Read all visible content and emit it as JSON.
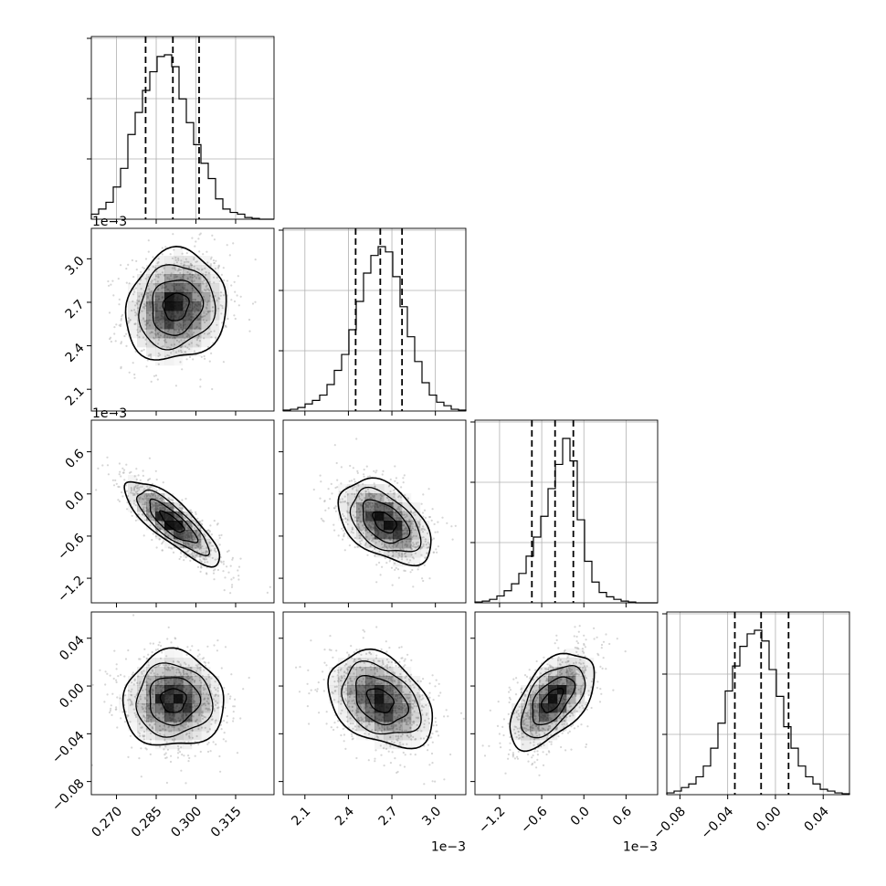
{
  "chart_data": {
    "type": "corner",
    "parameters": [
      {
        "ticks": [
          0.27,
          0.285,
          0.3,
          0.315
        ],
        "tick_labels": [
          "0.270",
          "0.285",
          "0.300",
          "0.315"
        ],
        "range": [
          0.2605,
          0.3295
        ],
        "quantiles": [
          0.281,
          0.2913,
          0.3012
        ],
        "offset_label": "",
        "hist": [
          0.03,
          0.06,
          0.1,
          0.19,
          0.3,
          0.5,
          0.63,
          0.76,
          0.87,
          0.96,
          0.97,
          0.9,
          0.71,
          0.57,
          0.44,
          0.33,
          0.24,
          0.12,
          0.06,
          0.04,
          0.03,
          0.01,
          0.005,
          0,
          0
        ]
      },
      {
        "ticks": [
          0.0021,
          0.0024,
          0.0027,
          0.003
        ],
        "tick_labels": [
          "2.1",
          "2.4",
          "2.7",
          "3.0"
        ],
        "range": [
          0.00195,
          0.00321
        ],
        "quantiles": [
          0.00245,
          0.00262,
          0.00277
        ],
        "offset_label": "1e−3",
        "hist": [
          0.005,
          0.01,
          0.02,
          0.04,
          0.06,
          0.09,
          0.15,
          0.23,
          0.32,
          0.46,
          0.62,
          0.78,
          0.88,
          0.93,
          0.9,
          0.76,
          0.59,
          0.42,
          0.28,
          0.16,
          0.09,
          0.05,
          0.03,
          0.01,
          0.005
        ]
      },
      {
        "ticks": [
          -0.0012,
          -0.0006,
          0.0,
          0.0006
        ],
        "tick_labels": [
          "−1.2",
          "−0.6",
          "0.0",
          "0.6"
        ],
        "range": [
          -0.00155,
          0.00105
        ],
        "quantiles": [
          -0.00074,
          -0.00041,
          -0.00015
        ],
        "offset_label": "1e−3",
        "hist": [
          0.005,
          0.01,
          0.02,
          0.04,
          0.07,
          0.11,
          0.17,
          0.27,
          0.38,
          0.5,
          0.66,
          0.8,
          0.95,
          0.82,
          0.48,
          0.24,
          0.12,
          0.06,
          0.035,
          0.02,
          0.01,
          0.005,
          0,
          0,
          0
        ]
      },
      {
        "ticks": [
          -0.08,
          -0.04,
          0.0,
          0.04
        ],
        "tick_labels": [
          "−0.08",
          "−0.04",
          "0.00",
          "0.04"
        ],
        "range": [
          -0.091,
          0.062
        ],
        "quantiles": [
          -0.034,
          -0.012,
          0.011
        ],
        "offset_label": "",
        "hist": [
          0.01,
          0.02,
          0.04,
          0.06,
          0.1,
          0.16,
          0.26,
          0.4,
          0.58,
          0.72,
          0.83,
          0.9,
          0.92,
          0.86,
          0.7,
          0.55,
          0.38,
          0.26,
          0.16,
          0.1,
          0.06,
          0.03,
          0.02,
          0.01,
          0.005
        ]
      }
    ],
    "pairs": [
      {
        "x": 0,
        "y": 1,
        "mean": [
          0.2925,
          0.00267
        ],
        "sd": [
          0.0095,
          0.00019
        ],
        "corr": 0.1
      },
      {
        "x": 0,
        "y": 2,
        "mean": [
          0.291,
          -0.0004
        ],
        "sd": [
          0.009,
          0.0003
        ],
        "corr": -0.82
      },
      {
        "x": 1,
        "y": 2,
        "mean": [
          0.00265,
          -0.0004
        ],
        "sd": [
          0.00016,
          0.0003
        ],
        "corr": -0.45
      },
      {
        "x": 0,
        "y": 3,
        "mean": [
          0.2915,
          -0.012
        ],
        "sd": [
          0.0095,
          0.02
        ],
        "corr": 0.0
      },
      {
        "x": 1,
        "y": 3,
        "mean": [
          0.00262,
          -0.012
        ],
        "sd": [
          0.00018,
          0.02
        ],
        "corr": -0.35
      },
      {
        "x": 2,
        "y": 3,
        "mean": [
          -0.00045,
          -0.012
        ],
        "sd": [
          0.0003,
          0.02
        ],
        "corr": 0.55
      }
    ],
    "contour_levels": [
      0.5,
      1.0,
      1.5,
      2.0
    ],
    "grid": true,
    "colors": {
      "line": "#000000",
      "grid": "#b0b0b0",
      "quantile": "#000000",
      "density": "#000000",
      "points": "#b5b5b5"
    }
  }
}
